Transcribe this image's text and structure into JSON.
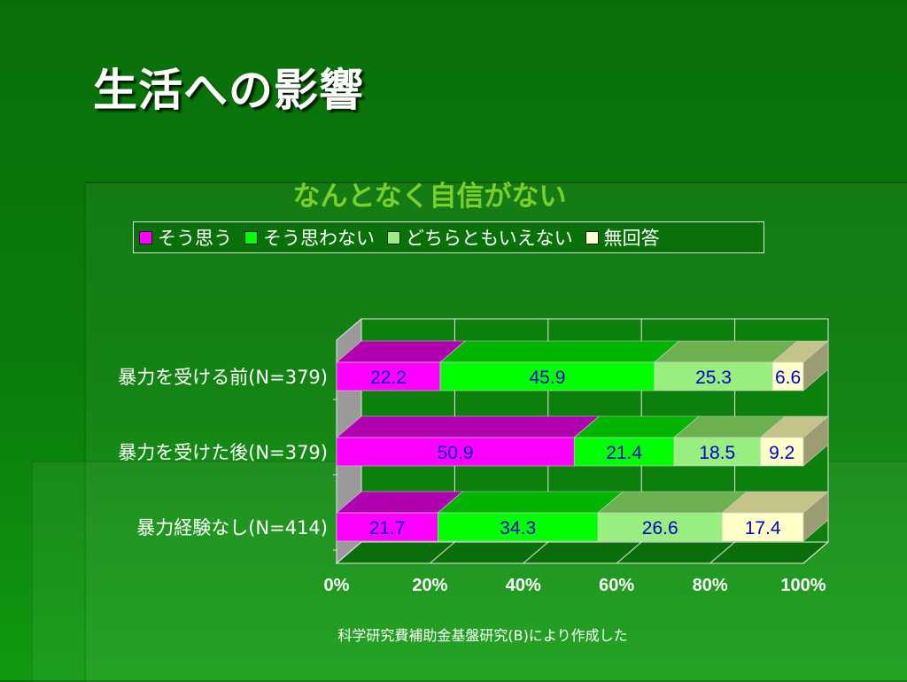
{
  "slide": {
    "title": "生活への影響",
    "source_note": "科学研究費補助金基盤研究(B)により作成した"
  },
  "chart_data": {
    "type": "bar",
    "orientation": "horizontal-stacked-100-3d",
    "title": "なんとなく自信がない",
    "categories": [
      "暴力を受ける前(N=379)",
      "暴力を受けた後(N=379)",
      "暴力経験なし(N=414)"
    ],
    "series": [
      {
        "name": "そう思う",
        "color": "#ff00ff",
        "top_color": "#b000b0",
        "values": [
          22.2,
          50.9,
          21.7
        ]
      },
      {
        "name": "そう思わない",
        "color": "#00ff00",
        "top_color": "#00b400",
        "values": [
          45.9,
          21.4,
          34.3
        ]
      },
      {
        "name": "どちらともいえない",
        "color": "#99ee80",
        "top_color": "#6db050",
        "values": [
          25.3,
          18.5,
          26.6
        ]
      },
      {
        "name": "無回答",
        "color": "#ffffc8",
        "top_color": "#c4c48a",
        "values": [
          6.6,
          9.2,
          17.4
        ]
      }
    ],
    "x_ticks": [
      "0%",
      "20%",
      "40%",
      "60%",
      "80%",
      "100%"
    ],
    "xlim": [
      0,
      100
    ],
    "grid": true,
    "legend_position": "top",
    "label_color": "#0000cc"
  }
}
